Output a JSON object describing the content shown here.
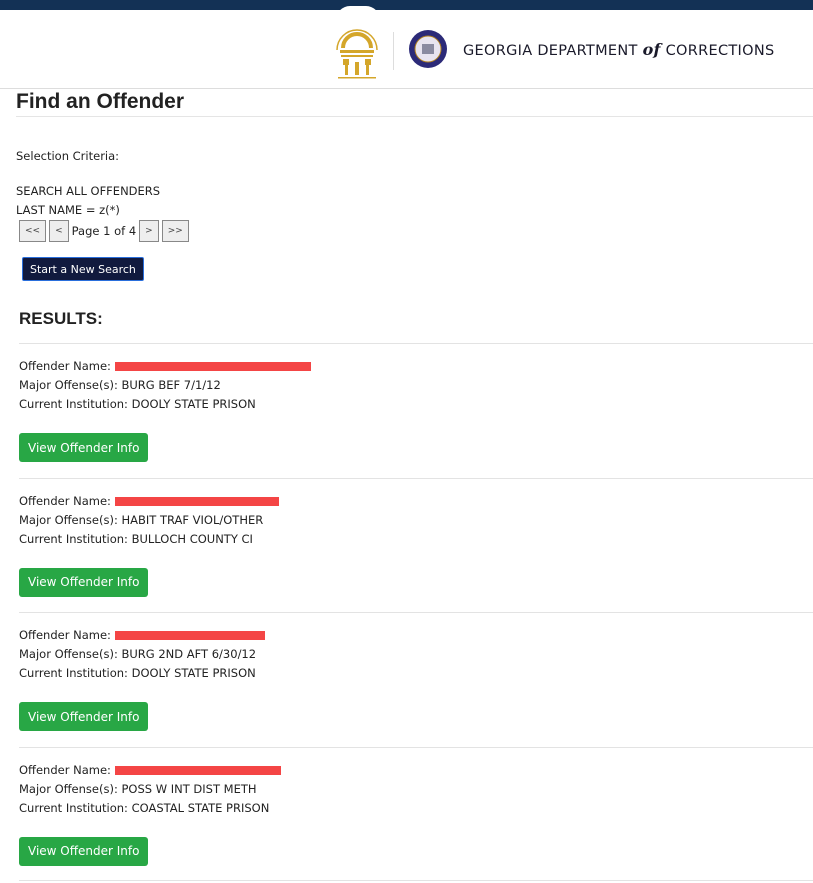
{
  "header": {
    "agency_pre": "GEORGIA DEPARTMENT ",
    "agency_of": "of",
    "agency_post": " CORRECTIONS"
  },
  "page_title": "Find an Offender",
  "criteria": {
    "label": "Selection Criteria:",
    "line1": "SEARCH ALL OFFENDERS",
    "line2": "LAST NAME = z(*)"
  },
  "pager": {
    "first": "<<",
    "prev": "<",
    "status": "Page 1 of 4",
    "next": ">",
    "last": ">>"
  },
  "new_search_label": "Start a New Search",
  "results_heading": "RESULTS:",
  "labels": {
    "name": "Offender Name:",
    "offense": "Major Offense(s):",
    "institution": "Current Institution:",
    "view": "View Offender Info"
  },
  "records": [
    {
      "offense": "BURG BEF 7/1/12",
      "institution": "DOOLY STATE PRISON"
    },
    {
      "offense": "HABIT TRAF VIOL/OTHER",
      "institution": "BULLOCH COUNTY CI"
    },
    {
      "offense": "BURG 2ND AFT 6/30/12",
      "institution": "DOOLY STATE PRISON"
    },
    {
      "offense": "POSS W INT DIST METH",
      "institution": "COASTAL STATE PRISON"
    }
  ],
  "colors": {
    "topbar": "#133155",
    "view_button": "#28a745",
    "new_search_button": "#111a3e",
    "redaction": "#f44545",
    "logo_gold": "#d4a62a"
  }
}
